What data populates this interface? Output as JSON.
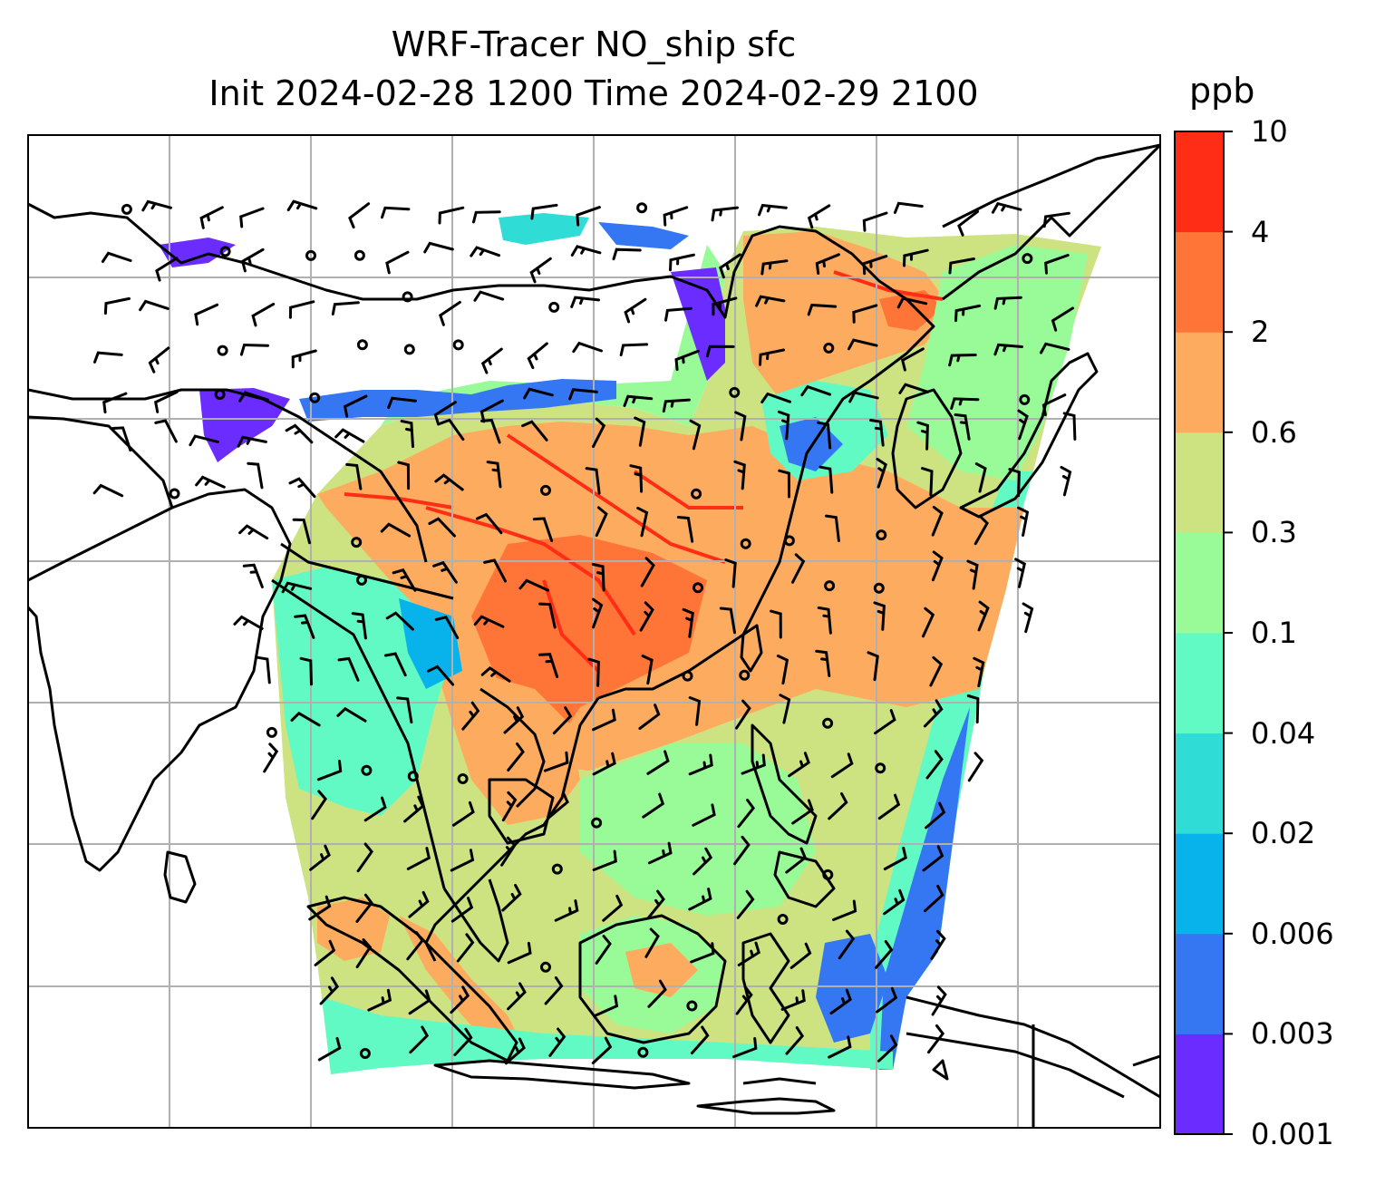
{
  "title": {
    "line1": "WRF-Tracer NO_ship sfc",
    "line2": "Init 2024-02-28 1200 Time 2024-02-29 2100"
  },
  "colorbar": {
    "unit": "ppb",
    "levels": [
      "0.001",
      "0.003",
      "0.006",
      "0.02",
      "0.04",
      "0.1",
      "0.3",
      "0.6",
      "2",
      "4",
      "10"
    ],
    "colors": [
      "#6a2cff",
      "#3576f2",
      "#08b2ea",
      "#2fdcd6",
      "#62fac4",
      "#98fb98",
      "#cde382",
      "#fcab5f",
      "#ff7437",
      "#ff2d16"
    ]
  },
  "map": {
    "gridline_color": "#b0b0b0",
    "coast_color": "#000000",
    "barb_color": "#000000"
  }
}
